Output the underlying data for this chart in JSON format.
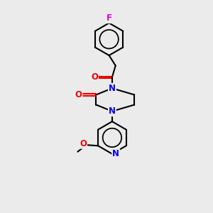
{
  "bg_color": "#ebebeb",
  "bond_color": "#000000",
  "N_color": "#0000ee",
  "O_color": "#ee0000",
  "F_color": "#dd00dd",
  "bond_width": 1.5,
  "figsize": [
    3.0,
    3.0
  ],
  "dpi": 100,
  "xlim": [
    0,
    10
  ],
  "ylim": [
    0,
    12.5
  ]
}
